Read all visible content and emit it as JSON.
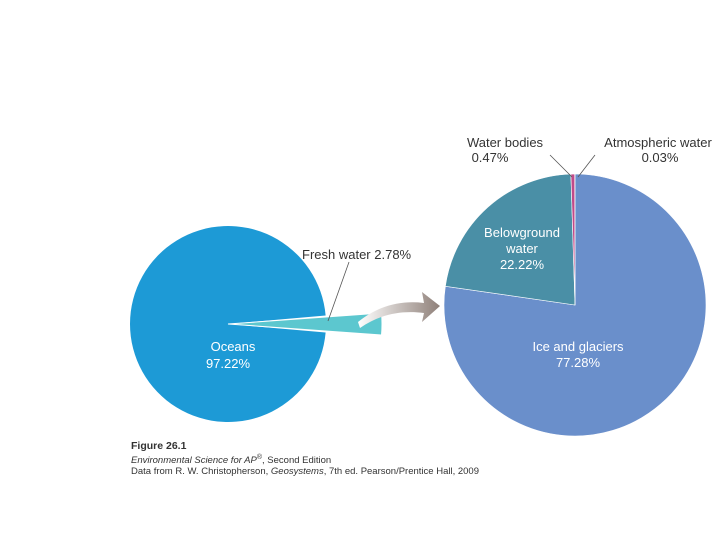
{
  "chart_data": [
    {
      "type": "pie",
      "categories": [
        "Oceans",
        "Fresh water"
      ],
      "values": [
        97.22,
        2.78
      ],
      "value_labels": [
        "97.22%",
        "2.78%"
      ],
      "colors": [
        "#1d9ad6",
        "#5cc7cf"
      ],
      "slice_labels": {
        "oceans_name": "Oceans",
        "oceans_value": "97.22%",
        "fresh": "Fresh water 2.78%"
      },
      "legend": "none"
    },
    {
      "type": "pie",
      "categories": [
        "Ice and glaciers",
        "Belowground water",
        "Water bodies",
        "Atmospheric water"
      ],
      "values": [
        77.28,
        22.22,
        0.47,
        0.03
      ],
      "colors": [
        "#6a8fcb",
        "#4a8fa6",
        "#c04a8a",
        "#e08a40"
      ],
      "slice_labels": {
        "ice_name": "Ice and glaciers",
        "ice_value": "77.28%",
        "below_line1": "Belowground",
        "below_line2": "water",
        "below_value": "22.22%",
        "bodies_name": "Water bodies",
        "bodies_value": "0.47%",
        "atmo_name": "Atmospheric water",
        "atmo_value": "0.03%"
      },
      "legend": "none"
    }
  ],
  "caption": {
    "figure": "Figure 26.1",
    "book_title": "Environmental Science for AP",
    "book_sup": "®",
    "book_edition": ", Second Edition",
    "source_prefix": "Data from R. W. Christopherson, ",
    "source_title": "Geosystems",
    "source_suffix": ", 7th ed. Pearson/Prentice Hall, 2009"
  }
}
